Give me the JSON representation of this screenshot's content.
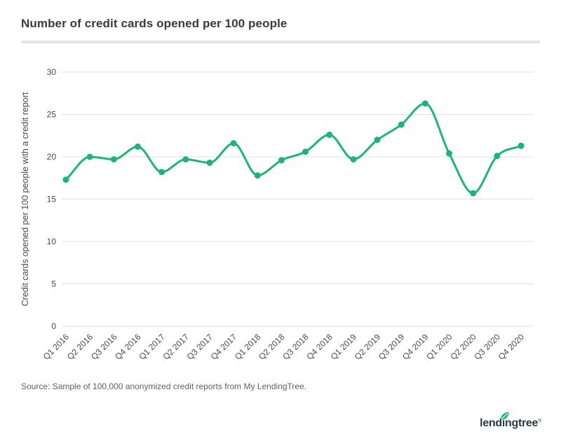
{
  "header": {
    "divider_color": "#e5e5e5"
  },
  "chart_data": {
    "type": "line",
    "title": "Number of credit cards opened per 100 people",
    "xlabel": "",
    "ylabel": "Credit cards opened per 100 people with a credit report",
    "categories": [
      "Q1 2016",
      "Q2 2016",
      "Q3 2016",
      "Q4 2016",
      "Q1 2017",
      "Q2 2017",
      "Q3 2017",
      "Q4 2017",
      "Q1 2018",
      "Q2 2018",
      "Q3 2018",
      "Q4 2018",
      "Q1 2019",
      "Q2 2019",
      "Q3 2019",
      "Q4 2019",
      "Q1 2020",
      "Q2 2020",
      "Q3 2020",
      "Q4 2020"
    ],
    "values": [
      17.3,
      20.0,
      19.7,
      21.2,
      18.2,
      19.7,
      19.3,
      21.6,
      17.8,
      19.6,
      20.6,
      22.6,
      19.7,
      22.0,
      23.8,
      26.3,
      20.4,
      15.7,
      20.1,
      21.3
    ],
    "ylim": [
      0,
      30
    ],
    "yticks": [
      0,
      5,
      10,
      15,
      20,
      25,
      30
    ],
    "grid": true,
    "legend_position": "none",
    "line_color": "#1cb576",
    "point_color": "#1cb576",
    "gridline_color": "#e0e0e0",
    "tick_label_color": "#4a4a4a"
  },
  "footer": {
    "source": "Source: Sample of 100,000 anonymized credit reports from My LendingTree.",
    "logo": {
      "part1": "lend",
      "i": "i",
      "part2": "ngtree",
      "reg": "®",
      "text_color": "#2c3a45",
      "leaf_color": "#00c06c"
    }
  }
}
